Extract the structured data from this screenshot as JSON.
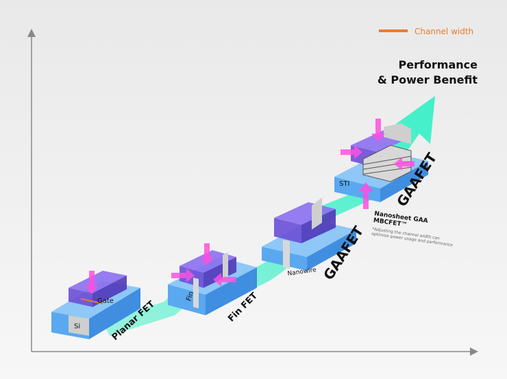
{
  "legend": {
    "label": "Channel width",
    "color": "#f07a2a"
  },
  "headline": {
    "line1": "Performance",
    "line2": "& Power Benefit"
  },
  "stages": [
    {
      "name": "Planar FET",
      "parts": [
        "Si",
        "Gate"
      ]
    },
    {
      "name": "Fin FET",
      "parts": [
        "Fin"
      ]
    },
    {
      "name": "GAAFET",
      "sub": "Nanowire"
    },
    {
      "name": "GAAFET",
      "parts": [
        "STI"
      ],
      "sub": "Nanosheet GAA",
      "sub2": "MBCFET™",
      "note1": "*Adjusting the channel width can",
      "note2": "optimize power usage and performance"
    }
  ],
  "colors": {
    "arrow": "#3ff0c8",
    "gate": "#6a4fd6",
    "substrate": "#5aa8f0",
    "force_arrow": "#ff4fe0",
    "channel": "#f07a2a"
  }
}
